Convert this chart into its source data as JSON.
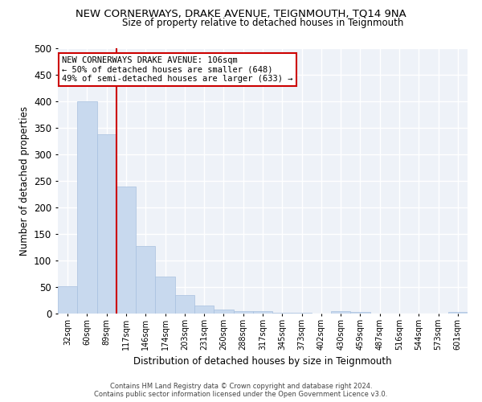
{
  "title": "NEW CORNERWAYS, DRAKE AVENUE, TEIGNMOUTH, TQ14 9NA",
  "subtitle": "Size of property relative to detached houses in Teignmouth",
  "xlabel": "Distribution of detached houses by size in Teignmouth",
  "ylabel": "Number of detached properties",
  "bar_color": "#c8d9ee",
  "bar_edge_color": "#a8c0df",
  "background_color": "#eef2f8",
  "grid_color": "#ffffff",
  "tick_labels": [
    "32sqm",
    "60sqm",
    "89sqm",
    "117sqm",
    "146sqm",
    "174sqm",
    "203sqm",
    "231sqm",
    "260sqm",
    "288sqm",
    "317sqm",
    "345sqm",
    "373sqm",
    "402sqm",
    "430sqm",
    "459sqm",
    "487sqm",
    "516sqm",
    "544sqm",
    "573sqm",
    "601sqm"
  ],
  "bar_values": [
    52,
    400,
    338,
    240,
    128,
    70,
    35,
    15,
    7,
    5,
    4,
    2,
    1,
    0,
    5,
    3,
    0,
    0,
    0,
    0,
    3
  ],
  "ylim": [
    0,
    500
  ],
  "yticks": [
    0,
    50,
    100,
    150,
    200,
    250,
    300,
    350,
    400,
    450,
    500
  ],
  "red_line_x": 2.5,
  "annotation_text": "NEW CORNERWAYS DRAKE AVENUE: 106sqm\n← 50% of detached houses are smaller (648)\n49% of semi-detached houses are larger (633) →",
  "annotation_box_color": "#ffffff",
  "annotation_box_edge": "#cc0000",
  "footer_line1": "Contains HM Land Registry data © Crown copyright and database right 2024.",
  "footer_line2": "Contains public sector information licensed under the Open Government Licence v3.0."
}
